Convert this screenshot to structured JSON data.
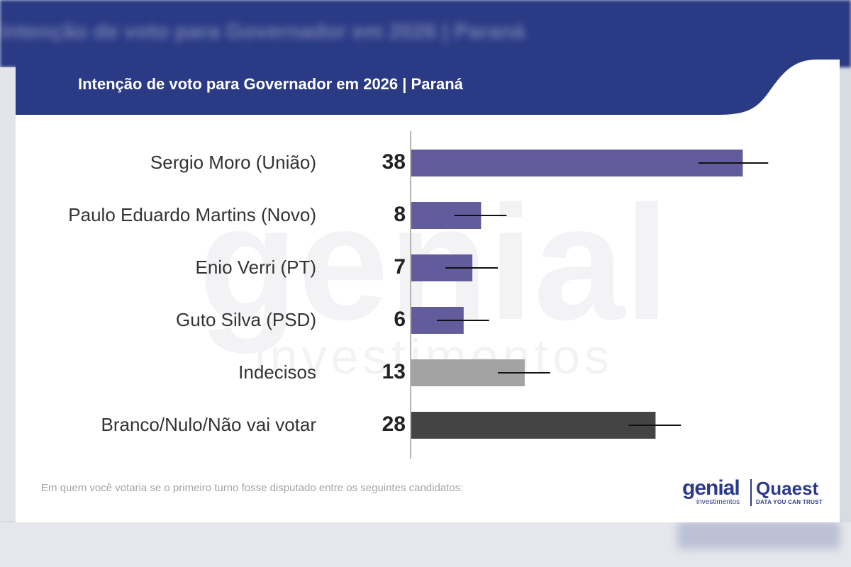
{
  "background": {
    "blurred_title": "Intenção de voto para Governador em 2026 | Paraná"
  },
  "header": {
    "title": "Intenção de voto para Governador em 2026 | Paraná",
    "color": "#2a3a85"
  },
  "watermark": {
    "line1": "genial",
    "line2": "investimentos"
  },
  "chart_data": {
    "type": "bar",
    "orientation": "horizontal",
    "title": "Intenção de voto para Governador em 2026 | Paraná",
    "categories": [
      "Sergio Moro (União)",
      "Paulo Eduardo Martins (Novo)",
      "Enio Verri (PT)",
      "Guto Silva (PSD)",
      "Indecisos",
      "Branco/Nulo/Não vai votar"
    ],
    "values": [
      38,
      8,
      7,
      6,
      13,
      28
    ],
    "error_bars": {
      "low": [
        33,
        5,
        4,
        3,
        10,
        25
      ],
      "high": [
        41,
        11,
        10,
        9,
        16,
        31
      ]
    },
    "colors": [
      "#625c9c",
      "#625c9c",
      "#625c9c",
      "#625c9c",
      "#a3a3a3",
      "#444444"
    ],
    "xlim": [
      0,
      50
    ],
    "grid": false,
    "legend": "none"
  },
  "footer": {
    "note": "Em quem você votaria se o primeiro turno fosse disputado entre os seguintes candidatos:",
    "logo_genial": "genial",
    "logo_genial_sub": "investimentos",
    "logo_quaest": "Quaest",
    "logo_quaest_sub": "DATA YOU CAN TRUST"
  }
}
